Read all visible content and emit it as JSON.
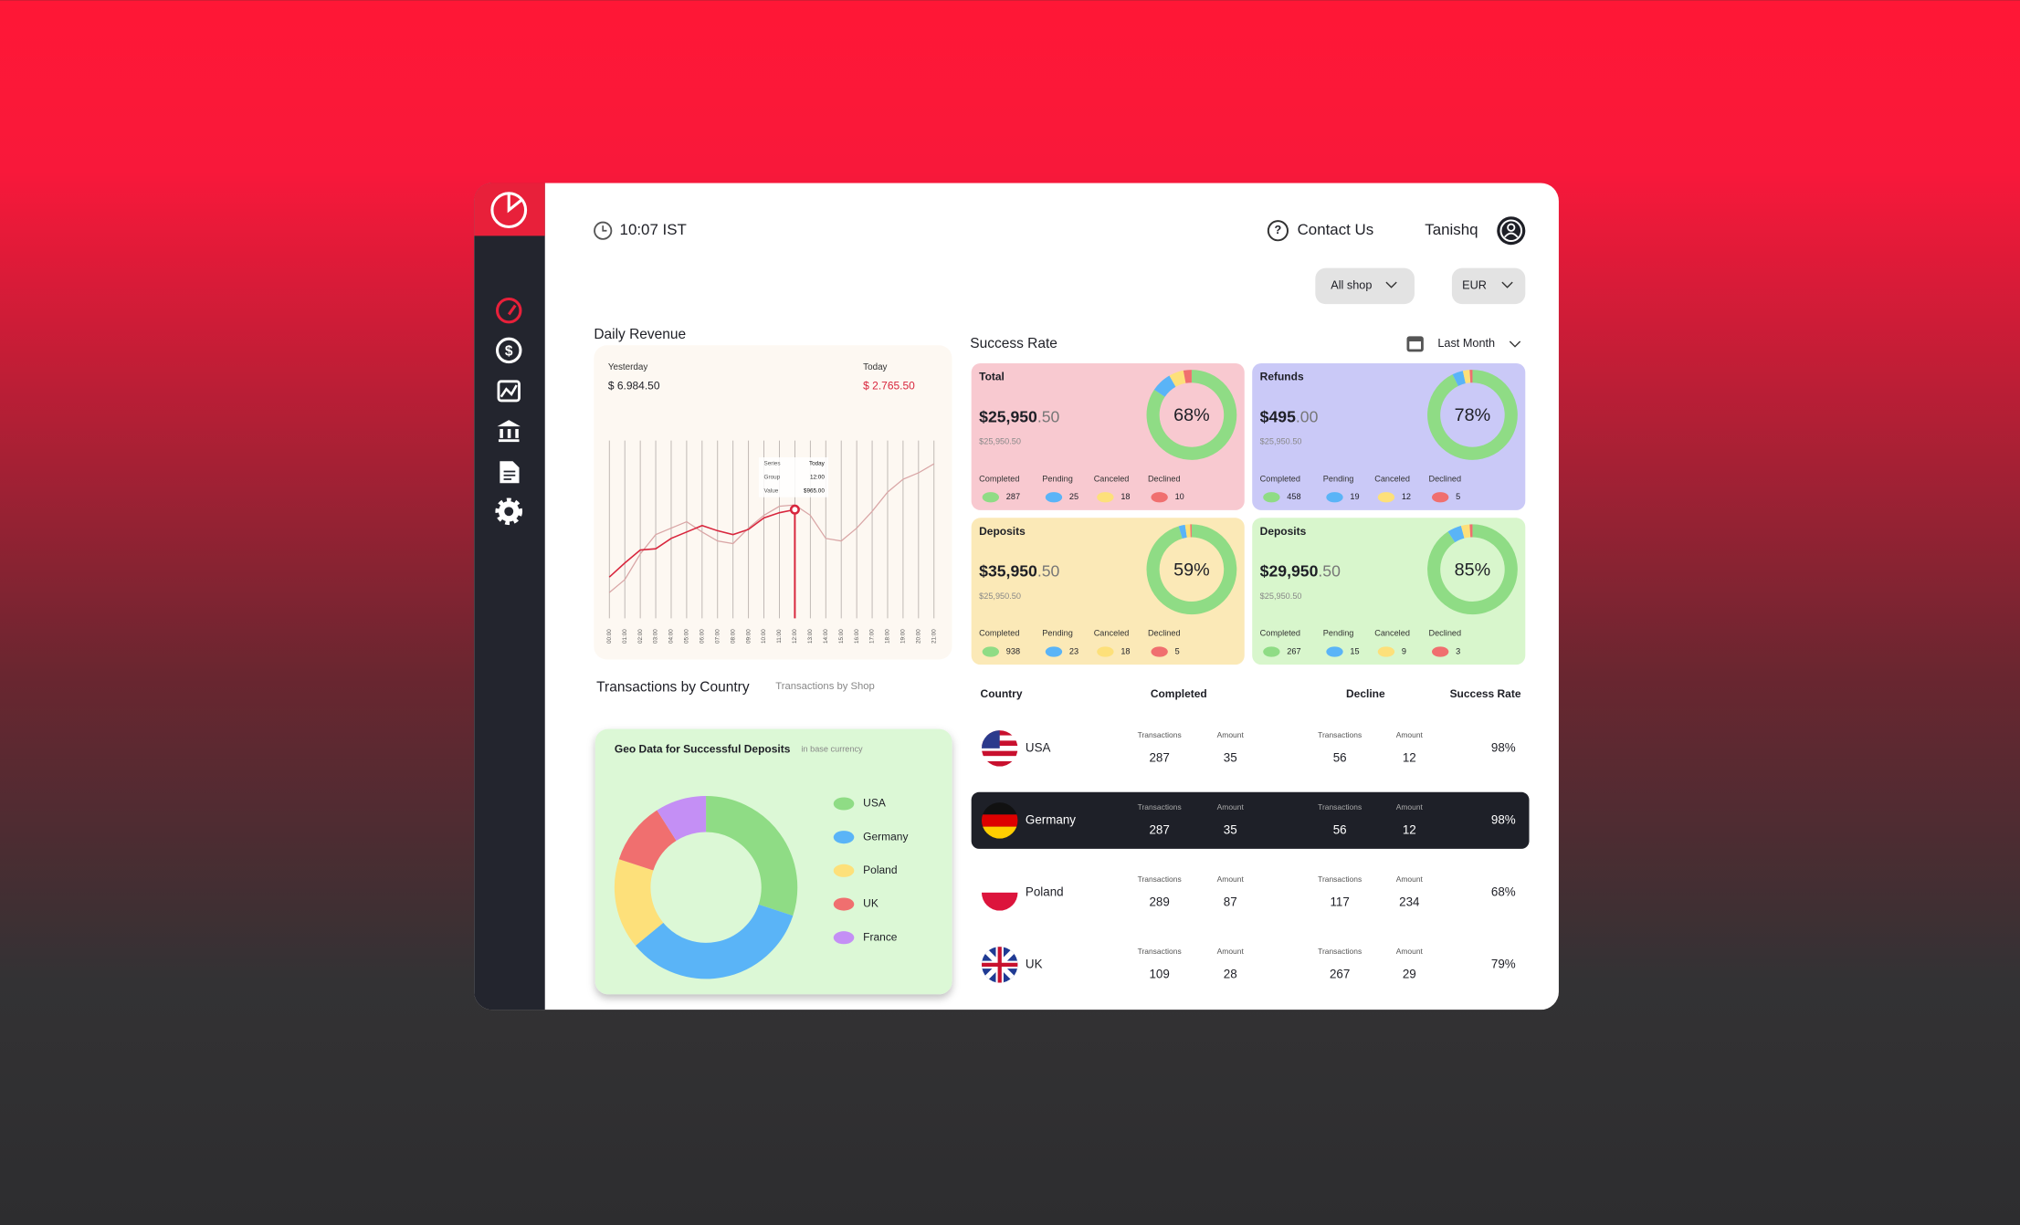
{
  "header": {
    "time": "10:07 IST",
    "contact": "Contact Us",
    "user": "Tanishq"
  },
  "filters": {
    "shop": "All shop",
    "currency": "EUR"
  },
  "daily_revenue": {
    "title": "Daily Revenue",
    "chart": {
      "type": "line",
      "categories": [
        "00:00",
        "01:00",
        "02:00",
        "03:00",
        "04:00",
        "05:00",
        "06:00",
        "07:00",
        "08:00",
        "09:00",
        "10:00",
        "11:00",
        "12:00",
        "13:00",
        "14:00",
        "15:00",
        "16:00",
        "17:00",
        "18:00",
        "19:00",
        "20:00",
        "21:00"
      ],
      "ylim": [
        0,
        1600
      ],
      "series": [
        {
          "name": "Yesterday",
          "total": "$ 6.984.50",
          "color": "#d9a6a6",
          "values": [
            229,
            343,
            571,
            743,
            800,
            857,
            766,
            686,
            663,
            800,
            914,
            994,
            1006,
            914,
            709,
            686,
            800,
            949,
            1120,
            1234,
            1291,
            1371
          ]
        },
        {
          "name": "Today",
          "total": "$ 2.765.50",
          "color": "#d8263d",
          "values": [
            366,
            491,
            606,
            617,
            709,
            766,
            823,
            777,
            743,
            789,
            891,
            937,
            965,
            null,
            null,
            null,
            null,
            null,
            null,
            null,
            null,
            null
          ]
        }
      ],
      "tooltip": {
        "series_label": "Series",
        "series": "Today",
        "group_label": "Group",
        "group": "12:00",
        "value_label": "Value",
        "value": "$965.00"
      }
    }
  },
  "success_rate": {
    "title": "Success Rate",
    "period": "Last Month",
    "status_labels": [
      "Completed",
      "Pending",
      "Canceled",
      "Declined"
    ],
    "status_colors": [
      "#8fdc85",
      "#5ab4f7",
      "#fde07a",
      "#f06f6f"
    ],
    "cards": [
      {
        "title": "Total",
        "amount": "$25,950",
        "amount_decimals": ".50",
        "subtotal": "$25,950.50",
        "rate": "68%",
        "color": "#f8c9d0",
        "counts": [
          287,
          25,
          18,
          10
        ]
      },
      {
        "title": "Refunds",
        "amount": "$495",
        "amount_decimals": ".00",
        "subtotal": "$25,950.50",
        "rate": "78%",
        "color": "#cac9f7",
        "counts": [
          458,
          19,
          12,
          5
        ]
      },
      {
        "title": "Deposits",
        "amount": "$35,950",
        "amount_decimals": ".50",
        "subtotal": "$25,950.50",
        "rate": "59%",
        "color": "#fbe9b7",
        "counts": [
          938,
          23,
          18,
          5
        ]
      },
      {
        "title": "Deposits",
        "amount": "$29,950",
        "amount_decimals": ".50",
        "subtotal": "$25,950.50",
        "rate": "85%",
        "color": "#d8f6cc",
        "counts": [
          267,
          15,
          9,
          3
        ]
      }
    ]
  },
  "transactions": {
    "title": "Transactions by Country",
    "alt_tab": "Transactions by Shop",
    "geo": {
      "title": "Geo Data for Successful Deposits",
      "subtitle": "in base currency",
      "chart": {
        "type": "pie",
        "categories": [
          "USA",
          "Germany",
          "Poland",
          "UK",
          "France"
        ],
        "values": [
          30,
          34,
          16,
          11,
          9
        ],
        "colors": [
          "#8fdc85",
          "#5ab4f7",
          "#fde07a",
          "#f06f6f",
          "#c48ff5"
        ]
      }
    }
  },
  "table": {
    "columns": [
      "Country",
      "Completed",
      "Decline",
      "Success Rate"
    ],
    "sub_columns": [
      "Transactions",
      "Amount"
    ],
    "rows": [
      {
        "country": "USA",
        "completed": [
          287,
          35
        ],
        "decline": [
          56,
          12
        ],
        "rate": "98%",
        "selected": false
      },
      {
        "country": "Germany",
        "completed": [
          287,
          35
        ],
        "decline": [
          56,
          12
        ],
        "rate": "98%",
        "selected": true
      },
      {
        "country": "Poland",
        "completed": [
          289,
          87
        ],
        "decline": [
          117,
          234
        ],
        "rate": "68%",
        "selected": false
      },
      {
        "country": "UK",
        "completed": [
          109,
          28
        ],
        "decline": [
          267,
          29
        ],
        "rate": "79%",
        "selected": false
      }
    ]
  }
}
